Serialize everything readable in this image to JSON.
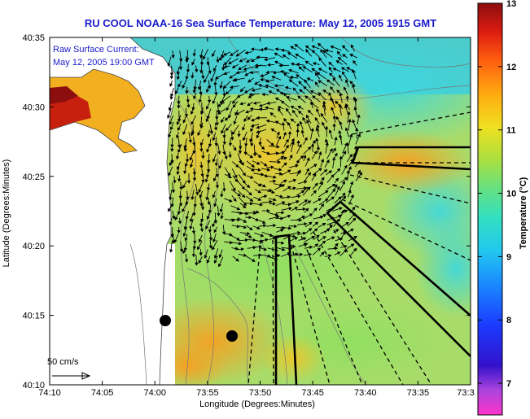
{
  "title": "RU COOL  NOAA-16  Sea Surface Temperature:  May 12, 2005 1915 GMT",
  "annotation": {
    "line1": "Raw Surface Current:",
    "line2": "May 12, 2005 19:00 GMT"
  },
  "scale_label": "50 cm/s",
  "axes": {
    "xlabel": "Longitude (Degrees:Minutes)",
    "ylabel": "Latitude (Degrees:Minutes)",
    "x_ticks": [
      "74:10",
      "74:05",
      "74:00",
      "73:55",
      "73:50",
      "73:45",
      "73:40",
      "73:35",
      "73:3"
    ],
    "y_ticks": [
      "40:35",
      "40:30",
      "40:25",
      "40:20",
      "40:15",
      "40:10"
    ]
  },
  "colorbar": {
    "label": "Temperature (°C)",
    "min": 6.5,
    "max": 13,
    "ticks": [
      "13",
      "12",
      "11",
      "10",
      "9",
      "8",
      "7"
    ]
  },
  "colors": {
    "title": "#1a1acc",
    "land": "#ffffff",
    "arrows": "#000000"
  }
}
